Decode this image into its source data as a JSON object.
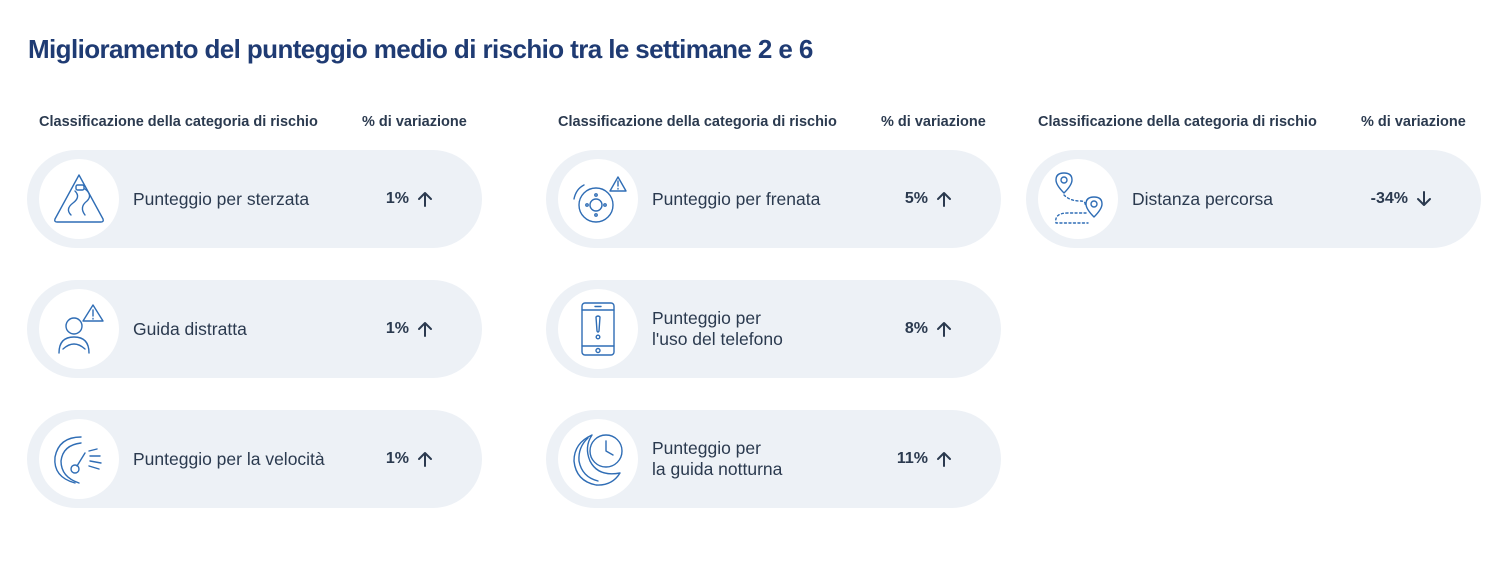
{
  "title": "Miglioramento del punteggio medio di rischio tra le settimane 2 e 6",
  "colors": {
    "title": "#1f3b73",
    "text": "#2b3a4f",
    "card_bg": "#edf1f6",
    "icon_stroke": "#2f6db5"
  },
  "columns": [
    {
      "header_category": "Classificazione della categoria di rischio",
      "header_change": "% di variazione",
      "items": [
        {
          "label": "Punteggio per sterzata",
          "change": "1%",
          "direction": "up",
          "icon": "steering-road-warning-icon"
        },
        {
          "label": "Guida distratta",
          "change": "1%",
          "direction": "up",
          "icon": "distracted-driver-icon"
        },
        {
          "label": "Punteggio per la velocità",
          "change": "1%",
          "direction": "up",
          "icon": "speedometer-icon"
        }
      ]
    },
    {
      "header_category": "Classificazione della categoria di rischio",
      "header_change": "% di variazione",
      "items": [
        {
          "label": "Punteggio per frenata",
          "change": "5%",
          "direction": "up",
          "icon": "brake-disc-warning-icon"
        },
        {
          "label": "Punteggio per\nl'uso del telefono",
          "change": "8%",
          "direction": "up",
          "icon": "phone-alert-icon"
        },
        {
          "label": "Punteggio per\nla guida notturna",
          "change": "11%",
          "direction": "up",
          "icon": "moon-clock-icon"
        }
      ]
    },
    {
      "header_category": "Classificazione della categoria di rischio",
      "header_change": "% di variazione",
      "items": [
        {
          "label": "Distanza percorsa",
          "change": "-34%",
          "direction": "down",
          "icon": "route-pins-icon"
        }
      ]
    }
  ]
}
